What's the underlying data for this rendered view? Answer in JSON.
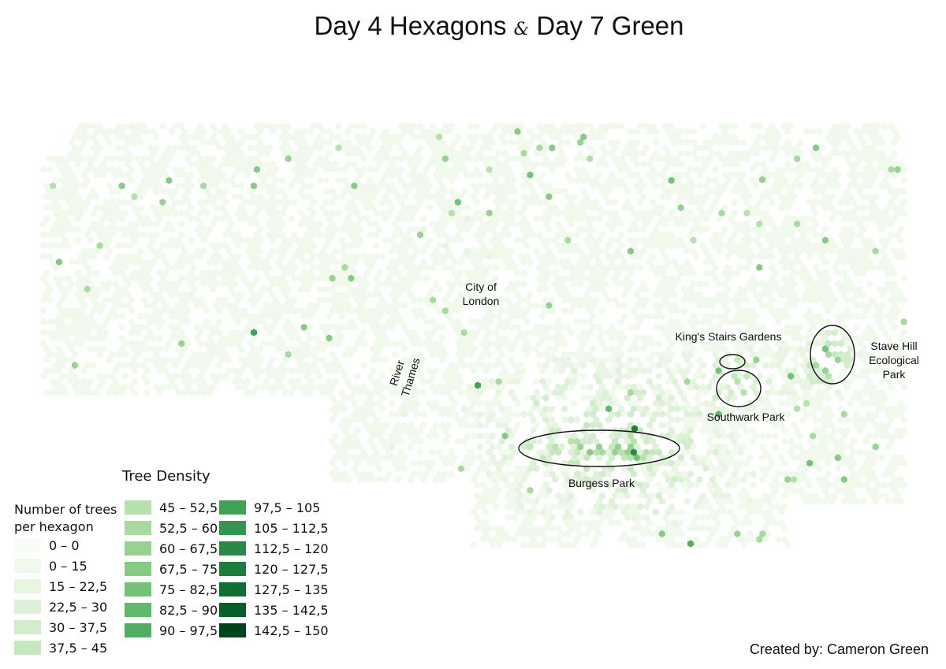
{
  "title": {
    "part1": "Day 4 Hexagons",
    "amp": "&",
    "part2": "Day 7 Green"
  },
  "map_labels": {
    "city": "City of London",
    "river": "River Thames",
    "kings_stairs": "King's Stairs Gardens",
    "stave_hill": "Stave Hill Ecological Park",
    "southwark": "Southwark Park",
    "burgess": "Burgess Park"
  },
  "legend": {
    "title": "Tree Density",
    "subtitle": "Number of trees per hexagon",
    "classes": [
      {
        "label": "0 – 0",
        "color": "#f7fcf5"
      },
      {
        "label": "0 – 15",
        "color": "#f0f9ec"
      },
      {
        "label": "15 – 22,5",
        "color": "#e8f5e3"
      },
      {
        "label": "22,5 – 30",
        "color": "#ddf1d8"
      },
      {
        "label": "30 – 37,5",
        "color": "#d2edcc"
      },
      {
        "label": "37,5 – 45",
        "color": "#c6e8bf"
      },
      {
        "label": "45 – 52,5",
        "color": "#b6e1ad"
      },
      {
        "label": "52,5 – 60",
        "color": "#a7da9f"
      },
      {
        "label": "60 – 67,5",
        "color": "#97d292"
      },
      {
        "label": "67,5 – 75",
        "color": "#86ca84"
      },
      {
        "label": "75 – 82,5",
        "color": "#74c277"
      },
      {
        "label": "82,5 – 90",
        "color": "#62b86b"
      },
      {
        "label": "90 – 97,5",
        "color": "#50ad61"
      },
      {
        "label": "97,5 – 105",
        "color": "#41a157"
      },
      {
        "label": "105 – 112,5",
        "color": "#35954e"
      },
      {
        "label": "112,5 – 120",
        "color": "#2a8945"
      },
      {
        "label": "120 – 127,5",
        "color": "#1c7d3c"
      },
      {
        "label": "127,5 – 135",
        "color": "#0f6f32"
      },
      {
        "label": "135 – 142,5",
        "color": "#085e29"
      },
      {
        "label": "142,5 – 150",
        "color": "#00441b"
      }
    ]
  },
  "credit": "Created by: Cameron Green"
}
